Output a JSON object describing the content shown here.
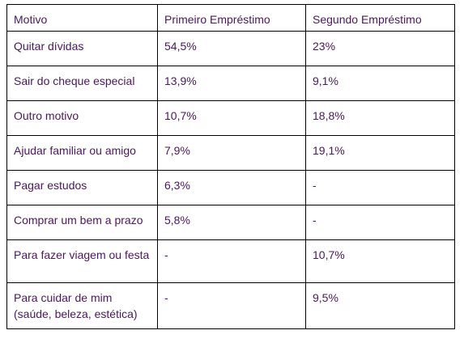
{
  "table": {
    "headers": [
      "Motivo",
      "Primeiro Empréstimo",
      "Segundo Empréstimo"
    ],
    "rows": [
      [
        "Quitar dívidas",
        "54,5%",
        "23%"
      ],
      [
        "Sair do cheque especial",
        "13,9%",
        "9,1%"
      ],
      [
        "Outro motivo",
        "10,7%",
        "18,8%"
      ],
      [
        "Ajudar familiar ou amigo",
        "7,9%",
        "19,1%"
      ],
      [
        "Pagar estudos",
        "6,3%",
        "-"
      ],
      [
        "Comprar um bem a prazo",
        "5,8%",
        "-"
      ],
      [
        "Para fazer viagem ou festa",
        "-",
        "10,7%"
      ],
      [
        "Para cuidar de mim (saúde, beleza, estética)",
        "-",
        "9,5%"
      ]
    ]
  },
  "colors": {
    "text": "#4b1760",
    "border": "#000000"
  }
}
